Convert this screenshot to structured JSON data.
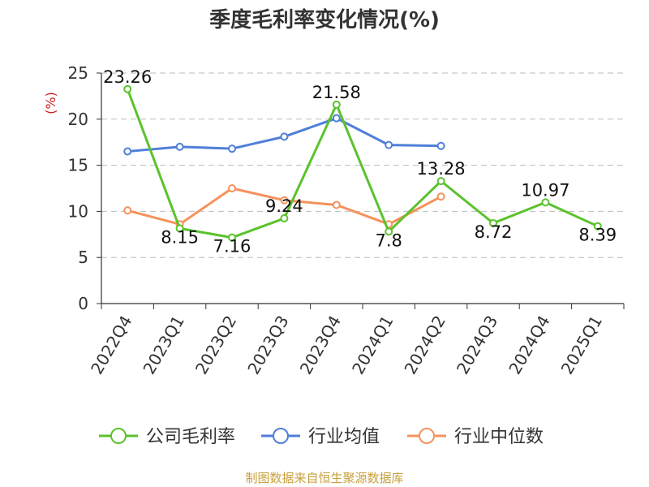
{
  "title": "季度毛利率变化情况(%)",
  "source": "制图数据来自恒生聚源数据库",
  "chart_data": {
    "type": "line",
    "title": "季度毛利率变化情况(%)",
    "ylabel": "(%)",
    "ylim": [
      0,
      25
    ],
    "yticks": [
      "0",
      "5",
      "10",
      "15",
      "20",
      "25"
    ],
    "grid": true,
    "legend_position": "bottom",
    "categories": [
      "2022Q4",
      "2023Q1",
      "2023Q2",
      "2023Q3",
      "2023Q4",
      "2024Q1",
      "2024Q2",
      "2024Q3",
      "2024Q4",
      "2025Q1"
    ],
    "series": [
      {
        "name": "公司毛利率",
        "color": "#5bc22d",
        "values": [
          23.26,
          8.15,
          7.16,
          9.24,
          21.58,
          7.8,
          13.28,
          8.72,
          10.97,
          8.39
        ],
        "labels": [
          "23.26",
          "8.15",
          "7.16",
          "9.24",
          "21.58",
          "7.8",
          "13.28",
          "8.72",
          "10.97",
          "8.39"
        ]
      },
      {
        "name": "行业均值",
        "color": "#4f7fd9",
        "values": [
          16.5,
          17.0,
          16.8,
          18.1,
          20.1,
          17.2,
          17.1,
          null,
          null,
          null
        ]
      },
      {
        "name": "行业中位数",
        "color": "#f5925c",
        "values": [
          10.1,
          8.6,
          12.5,
          11.2,
          10.7,
          8.6,
          11.6,
          null,
          null,
          null
        ]
      }
    ]
  }
}
